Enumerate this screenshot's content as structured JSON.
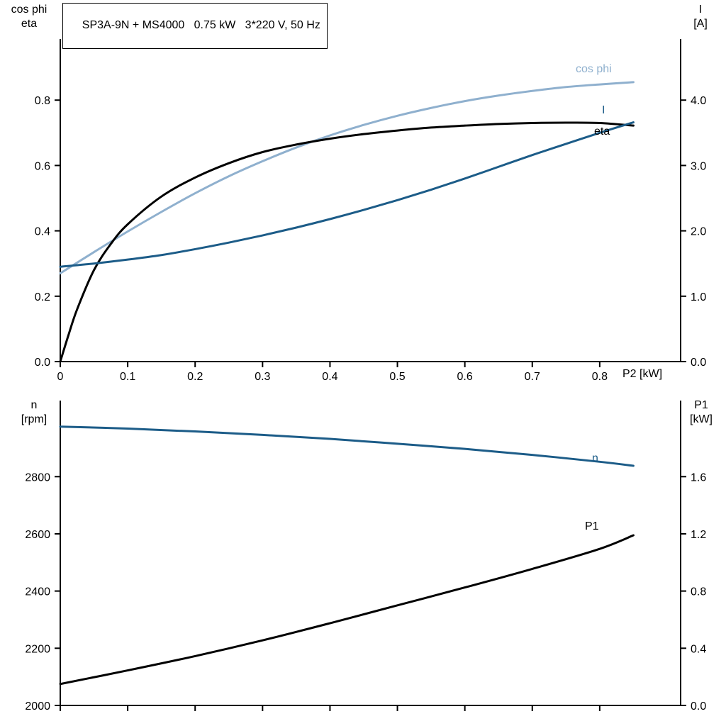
{
  "colors": {
    "axis": "#000000",
    "black_curve": "#000000",
    "dark_blue": "#1c5c88",
    "light_blue": "#8fb0ce",
    "text": "#000000",
    "background": "#ffffff"
  },
  "chart_data": [
    {
      "type": "line",
      "id": "top",
      "title": "SP3A-9N + MS4000   0.75 kW   3*220 V, 50 Hz",
      "grid": false,
      "xlabel": "P2 [kW]",
      "x_range": [
        0,
        0.92
      ],
      "x_ticks": [
        0,
        0.1,
        0.2,
        0.3,
        0.4,
        0.5,
        0.6,
        0.7,
        0.8
      ],
      "x_tick_labels": [
        "0",
        "0.1",
        "0.2",
        "0.3",
        "0.4",
        "0.5",
        "0.6",
        "0.7",
        "0.8"
      ],
      "left_axis": {
        "label_line1": "cos phi",
        "label_line2": "eta",
        "range": [
          0,
          0.987
        ],
        "ticks": [
          0,
          0.2,
          0.4,
          0.6,
          0.8
        ],
        "tick_labels": [
          "0.0",
          "0.2",
          "0.4",
          "0.6",
          "0.8"
        ]
      },
      "right_axis": {
        "label_line1": "I",
        "label_line2": "[A]",
        "range": [
          0,
          4.935
        ],
        "ticks": [
          0,
          1,
          2,
          3,
          4
        ],
        "tick_labels": [
          "0.0",
          "1.0",
          "2.0",
          "3.0",
          "4.0"
        ]
      },
      "series": [
        {
          "name": "cos phi",
          "axis": "left",
          "color": "#8fb0ce",
          "x": [
            0,
            0.05,
            0.1,
            0.15,
            0.2,
            0.25,
            0.3,
            0.35,
            0.4,
            0.45,
            0.5,
            0.55,
            0.6,
            0.65,
            0.7,
            0.75,
            0.8,
            0.85
          ],
          "y": [
            0.27,
            0.335,
            0.398,
            0.458,
            0.515,
            0.567,
            0.613,
            0.655,
            0.692,
            0.724,
            0.752,
            0.776,
            0.797,
            0.814,
            0.828,
            0.84,
            0.848,
            0.855
          ]
        },
        {
          "name": "eta",
          "axis": "left",
          "color": "#000000",
          "x": [
            0,
            0.012,
            0.025,
            0.05,
            0.075,
            0.1,
            0.15,
            0.2,
            0.25,
            0.3,
            0.35,
            0.4,
            0.45,
            0.5,
            0.55,
            0.6,
            0.65,
            0.7,
            0.75,
            0.8,
            0.85
          ],
          "y": [
            0,
            0.08,
            0.16,
            0.28,
            0.36,
            0.42,
            0.505,
            0.563,
            0.607,
            0.641,
            0.664,
            0.682,
            0.696,
            0.707,
            0.716,
            0.722,
            0.727,
            0.73,
            0.731,
            0.73,
            0.722
          ]
        },
        {
          "name": "I",
          "axis": "right",
          "color": "#1c5c88",
          "x": [
            0,
            0.05,
            0.1,
            0.15,
            0.2,
            0.25,
            0.3,
            0.35,
            0.4,
            0.45,
            0.5,
            0.55,
            0.6,
            0.65,
            0.7,
            0.75,
            0.8,
            0.85
          ],
          "y": [
            1.45,
            1.5,
            1.56,
            1.63,
            1.72,
            1.82,
            1.93,
            2.05,
            2.18,
            2.32,
            2.47,
            2.63,
            2.8,
            2.98,
            3.16,
            3.33,
            3.5,
            3.66
          ]
        }
      ]
    },
    {
      "type": "line",
      "id": "bottom",
      "grid": false,
      "x_range": [
        0,
        0.92
      ],
      "x_ticks": [
        0,
        0.1,
        0.2,
        0.3,
        0.4,
        0.5,
        0.6,
        0.7,
        0.8
      ],
      "x_tick_labels": [],
      "left_axis": {
        "label_line1": "n",
        "label_line2": "[rpm]",
        "range": [
          2000,
          3066
        ],
        "ticks": [
          2000,
          2200,
          2400,
          2600,
          2800
        ],
        "tick_labels": [
          "2000",
          "2200",
          "2400",
          "2600",
          "2800"
        ]
      },
      "right_axis": {
        "label_line1": "P1",
        "label_line2": "[kW]",
        "range": [
          0,
          2.132
        ],
        "ticks": [
          0,
          0.4,
          0.8,
          1.2,
          1.6
        ],
        "tick_labels": [
          "0.0",
          "0.4",
          "0.8",
          "1.2",
          "1.6"
        ]
      },
      "series": [
        {
          "name": "n",
          "axis": "left",
          "color": "#1c5c88",
          "x": [
            0,
            0.1,
            0.2,
            0.3,
            0.4,
            0.5,
            0.6,
            0.7,
            0.8,
            0.85
          ],
          "y": [
            2975,
            2968,
            2958,
            2946,
            2932,
            2915,
            2897,
            2876,
            2852,
            2838
          ]
        },
        {
          "name": "P1",
          "axis": "right",
          "color": "#000000",
          "x": [
            0,
            0.1,
            0.2,
            0.3,
            0.4,
            0.5,
            0.6,
            0.7,
            0.8,
            0.85
          ],
          "y": [
            0.15,
            0.245,
            0.345,
            0.455,
            0.575,
            0.7,
            0.825,
            0.955,
            1.095,
            1.19
          ]
        }
      ]
    }
  ]
}
